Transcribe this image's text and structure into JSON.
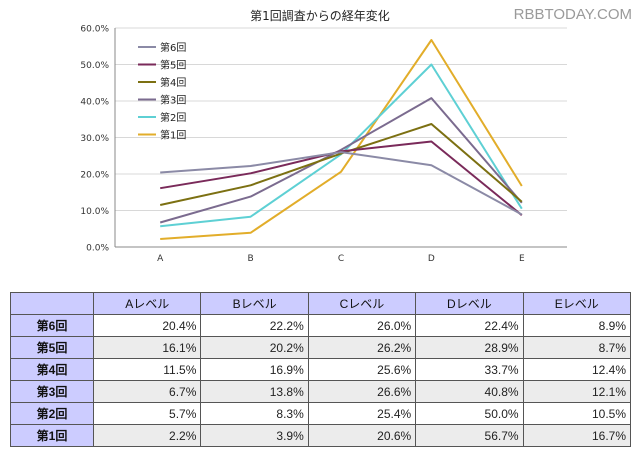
{
  "watermark": "RBBTODAY.COM",
  "chart_data": {
    "type": "line",
    "title": "第1回調査からの経年変化",
    "categories": [
      "A",
      "B",
      "C",
      "D",
      "E"
    ],
    "ylim": [
      0,
      60
    ],
    "yticks": [
      "0.0%",
      "10.0%",
      "20.0%",
      "30.0%",
      "40.0%",
      "50.0%",
      "60.0%"
    ],
    "ytick_values": [
      0,
      10,
      20,
      30,
      40,
      50,
      60
    ],
    "grid": true,
    "legend": "top-left",
    "series": [
      {
        "name": "第6回",
        "color": "#8b8aa6",
        "values": [
          20.4,
          22.2,
          26.0,
          22.4,
          8.9
        ]
      },
      {
        "name": "第5回",
        "color": "#7a2a5a",
        "values": [
          16.1,
          20.2,
          26.2,
          28.9,
          8.7
        ]
      },
      {
        "name": "第4回",
        "color": "#7c7012",
        "values": [
          11.5,
          16.9,
          25.6,
          33.7,
          12.4
        ]
      },
      {
        "name": "第3回",
        "color": "#7b6b8f",
        "values": [
          6.7,
          13.8,
          26.6,
          40.8,
          12.1
        ]
      },
      {
        "name": "第2回",
        "color": "#5ed0d4",
        "values": [
          5.7,
          8.3,
          25.4,
          50.0,
          10.5
        ]
      },
      {
        "name": "第1回",
        "color": "#e2ad2a",
        "values": [
          2.2,
          3.9,
          20.6,
          56.7,
          16.7
        ]
      }
    ]
  },
  "table": {
    "headers": [
      "",
      "Aレベル",
      "Bレベル",
      "Cレベル",
      "Dレベル",
      "Eレベル"
    ],
    "rows": [
      {
        "label": "第6回",
        "cells": [
          "20.4%",
          "22.2%",
          "26.0%",
          "22.4%",
          "8.9%"
        ]
      },
      {
        "label": "第5回",
        "cells": [
          "16.1%",
          "20.2%",
          "26.2%",
          "28.9%",
          "8.7%"
        ]
      },
      {
        "label": "第4回",
        "cells": [
          "11.5%",
          "16.9%",
          "25.6%",
          "33.7%",
          "12.4%"
        ]
      },
      {
        "label": "第3回",
        "cells": [
          "6.7%",
          "13.8%",
          "26.6%",
          "40.8%",
          "12.1%"
        ]
      },
      {
        "label": "第2回",
        "cells": [
          "5.7%",
          "8.3%",
          "25.4%",
          "50.0%",
          "10.5%"
        ]
      },
      {
        "label": "第1回",
        "cells": [
          "2.2%",
          "3.9%",
          "20.6%",
          "56.7%",
          "16.7%"
        ]
      }
    ]
  }
}
